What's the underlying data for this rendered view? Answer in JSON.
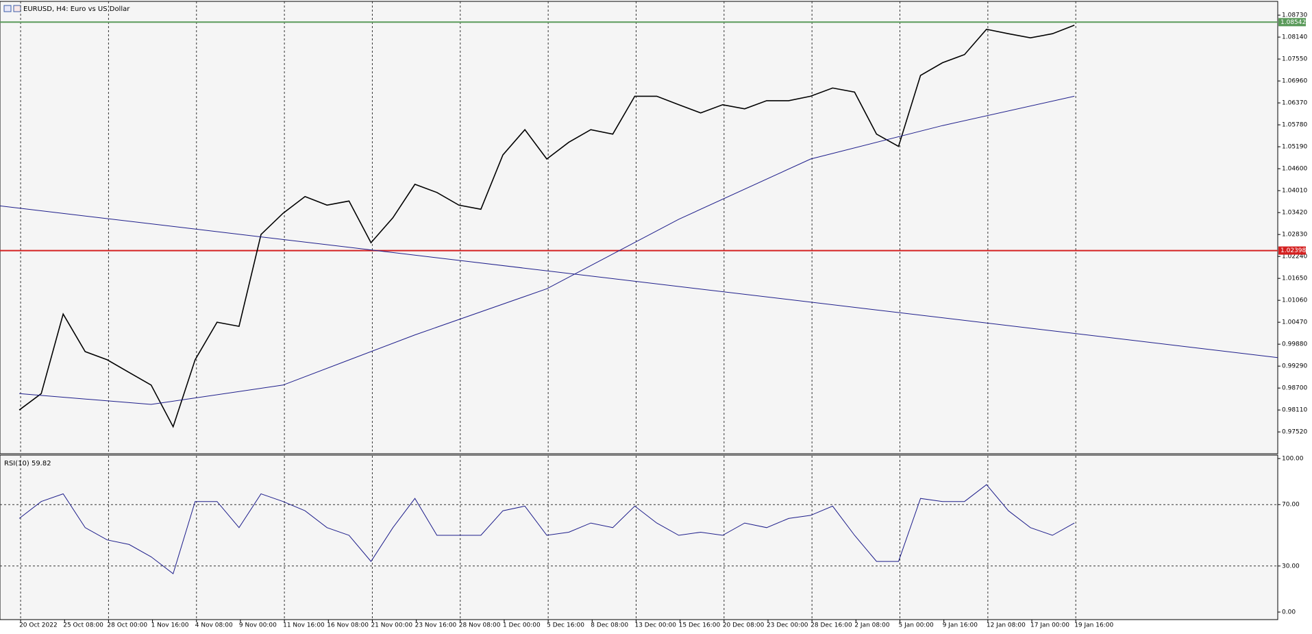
{
  "title": "EURUSD, H4:  Euro vs US Dollar",
  "chart_data": [
    {
      "type": "line",
      "xlim": [
        -7,
        458
      ],
      "ylim": [
        0.9697,
        1.0899
      ],
      "xticks": [
        {
          "value": 0,
          "label": "20 Oct 2022"
        },
        {
          "value": 16,
          "label": "25 Oct 08:00"
        },
        {
          "value": 32,
          "label": "28 Oct 00:00"
        },
        {
          "value": 48,
          "label": "1 Nov 16:00"
        },
        {
          "value": 64,
          "label": "4 Nov 08:00"
        },
        {
          "value": 80,
          "label": "9 Nov 00:00"
        },
        {
          "value": 96,
          "label": "11 Nov 16:00"
        },
        {
          "value": 112,
          "label": "16 Nov 08:00"
        },
        {
          "value": 128,
          "label": "21 Nov 00:00"
        },
        {
          "value": 144,
          "label": "23 Nov 16:00"
        },
        {
          "value": 160,
          "label": "28 Nov 08:00"
        },
        {
          "value": 176,
          "label": "1 Dec 00:00"
        },
        {
          "value": 192,
          "label": "5 Dec 16:00"
        },
        {
          "value": 208,
          "label": "8 Dec 08:00"
        },
        {
          "value": 224,
          "label": "13 Dec 00:00"
        },
        {
          "value": 240,
          "label": "15 Dec 16:00"
        },
        {
          "value": 256,
          "label": "20 Dec 08:00"
        },
        {
          "value": 272,
          "label": "23 Dec 00:00"
        },
        {
          "value": 288,
          "label": "28 Dec 16:00"
        },
        {
          "value": 304,
          "label": "2 Jan 08:00"
        },
        {
          "value": 320,
          "label": "5 Jan 00:00"
        },
        {
          "value": 336,
          "label": "9 Jan 16:00"
        },
        {
          "value": 352,
          "label": "12 Jan 08:00"
        },
        {
          "value": 368,
          "label": "17 Jan 00:00"
        },
        {
          "value": 384,
          "label": "19 Jan 16:00"
        }
      ],
      "yticks": [
        {
          "value": 1.0873,
          "label": "1.08730"
        },
        {
          "value": 1.0814,
          "label": "1.08140"
        },
        {
          "value": 1.0755,
          "label": "1.07550"
        },
        {
          "value": 1.0696,
          "label": "1.06960"
        },
        {
          "value": 1.0637,
          "label": "1.06370"
        },
        {
          "value": 1.0578,
          "label": "1.05780"
        },
        {
          "value": 1.0519,
          "label": "1.05190"
        },
        {
          "value": 1.046,
          "label": "1.04600"
        },
        {
          "value": 1.0401,
          "label": "1.04010"
        },
        {
          "value": 1.0342,
          "label": "1.03420"
        },
        {
          "value": 1.0283,
          "label": "1.02830"
        },
        {
          "value": 1.0224,
          "label": "1.02240"
        },
        {
          "value": 1.0165,
          "label": "1.01650"
        },
        {
          "value": 1.0106,
          "label": "1.01060"
        },
        {
          "value": 1.0047,
          "label": "1.00470"
        },
        {
          "value": 0.9988,
          "label": "0.99880"
        },
        {
          "value": 0.9929,
          "label": "0.99290"
        },
        {
          "value": 0.987,
          "label": "0.98700"
        },
        {
          "value": 0.9811,
          "label": "0.98110"
        },
        {
          "value": 0.9752,
          "label": "0.97520"
        }
      ],
      "series": [
        {
          "color": "#000000",
          "x": [
            0,
            8,
            16,
            24,
            32,
            40,
            48,
            56,
            64,
            72,
            80,
            88,
            96,
            104,
            112,
            120,
            128,
            136,
            144,
            152,
            160,
            168,
            176,
            184,
            192,
            200,
            208,
            216,
            224,
            232,
            240,
            248,
            256,
            264,
            272,
            280,
            288,
            296,
            304,
            312,
            320,
            328,
            336,
            344,
            352,
            360,
            368,
            376,
            384
          ],
          "values": [
            0.9811,
            0.9855,
            1.0069,
            0.9968,
            0.9946,
            0.9912,
            0.9878,
            0.9766,
            0.9946,
            1.0047,
            1.0036,
            1.0283,
            1.034,
            1.0385,
            1.0362,
            1.0373,
            1.0261,
            1.0328,
            1.0418,
            1.0396,
            1.0362,
            1.0351,
            1.0497,
            1.0565,
            1.0486,
            1.0531,
            1.0565,
            1.0553,
            1.0655,
            1.0655,
            1.0632,
            1.061,
            1.0632,
            1.0621,
            1.0643,
            1.0643,
            1.0655,
            1.0677,
            1.0666,
            1.0553,
            1.052,
            1.0711,
            1.0745,
            1.0767,
            1.0835,
            1.0823,
            1.0812,
            1.0823,
            1.0846
          ]
        },
        {
          "color": "#1c1c8a",
          "x": [
            0,
            48,
            96,
            144,
            192,
            240,
            288,
            336,
            384
          ],
          "values": [
            0.9855,
            0.9826,
            0.9878,
            1.0013,
            1.0137,
            1.0324,
            1.0486,
            1.0576,
            1.0655
          ]
        },
        {
          "color": "#1c1c8a",
          "x": [
            -7,
            458
          ],
          "values": [
            1.036,
            0.9952
          ]
        }
      ],
      "hlines": [
        {
          "value": 1.08542,
          "color": "#5a9a5a"
        },
        {
          "value": 1.02398,
          "color": "#d42020"
        }
      ]
    },
    {
      "type": "line",
      "title": "RSI(10) 59.82",
      "ylim": [
        0,
        100
      ],
      "yticks": [
        {
          "value": 100,
          "label": "100.00"
        },
        {
          "value": 70,
          "label": "70.00"
        },
        {
          "value": 30,
          "label": "30.00"
        },
        {
          "value": 0,
          "label": "0.00"
        }
      ],
      "series": [
        {
          "color": "#1c1c8a",
          "x": [
            0,
            8,
            16,
            24,
            32,
            40,
            48,
            56,
            64,
            72,
            80,
            88,
            96,
            104,
            112,
            120,
            128,
            136,
            144,
            152,
            160,
            168,
            176,
            184,
            192,
            200,
            208,
            216,
            224,
            232,
            240,
            248,
            256,
            264,
            272,
            280,
            288,
            296,
            304,
            312,
            320,
            328,
            336,
            344,
            352,
            360,
            368,
            376,
            384
          ],
          "values": [
            61,
            72,
            77,
            55,
            47,
            44,
            36,
            25,
            72,
            72,
            55,
            77,
            72,
            66,
            55,
            50,
            33,
            55,
            74,
            50,
            50,
            50,
            66,
            69,
            50,
            52,
            58,
            55,
            69,
            58,
            50,
            52,
            50,
            58,
            55,
            61,
            63,
            69,
            50,
            33,
            33,
            74,
            72,
            72,
            83,
            66,
            55,
            50,
            58
          ]
        }
      ]
    }
  ]
}
